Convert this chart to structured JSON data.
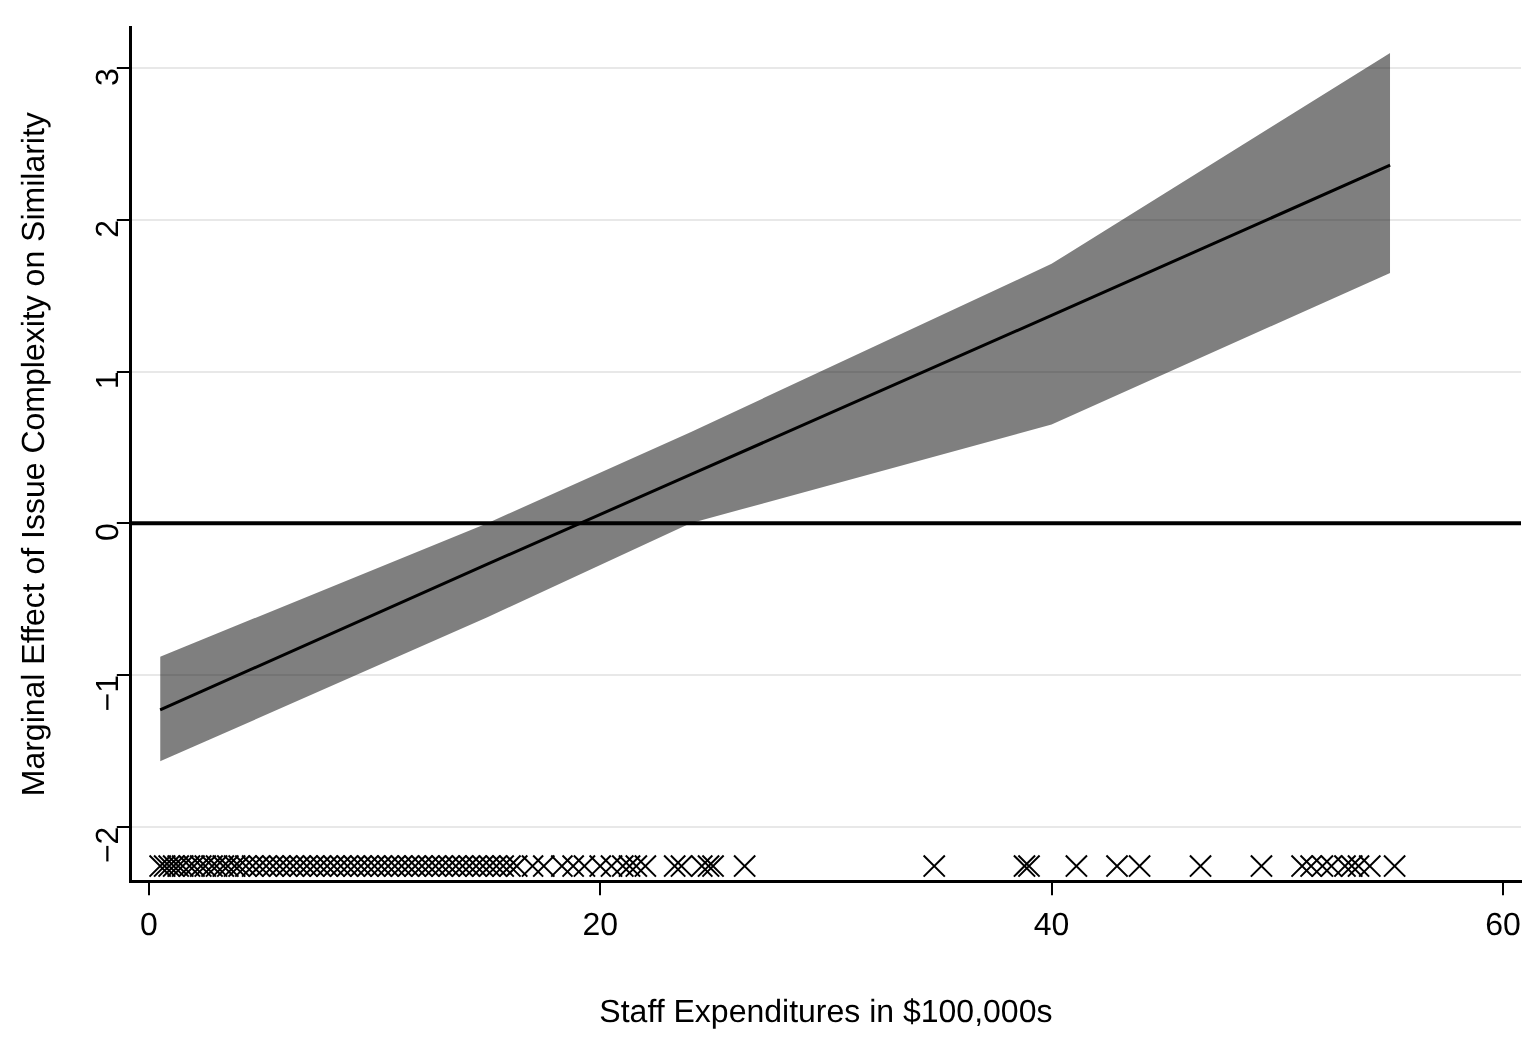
{
  "chart_data": {
    "type": "line",
    "xlabel": "Staff Expenditures in $100,000s",
    "ylabel": "Marginal Effect of Issue Complexity on Similarity",
    "xlim": [
      -0.8,
      60.8
    ],
    "xticks": [
      0,
      20,
      40,
      60
    ],
    "ylim": [
      -2.36,
      3.27
    ],
    "yticks": [
      -2,
      -1,
      0,
      1,
      2,
      3
    ],
    "grid": "y",
    "legend": false,
    "ref_lines": [
      {
        "axis": "y",
        "value": 0,
        "color": "#000000"
      }
    ],
    "series": [
      {
        "color": "#000000",
        "x": [
          0.5,
          15,
          24,
          40,
          55
        ],
        "values": [
          -1.23,
          -0.27,
          0.32,
          1.37,
          2.36
        ],
        "lower": [
          -1.57,
          -0.62,
          0,
          0.65,
          1.65
        ],
        "upper": [
          -0.88,
          0,
          0.6,
          1.71,
          3.1
        ]
      },
      {
        "type": "scatter",
        "color": "#000000",
        "marker": "cross",
        "x": [
          0.5,
          0.7,
          0.9,
          1.1,
          1.3,
          1.5,
          1.8,
          2.0,
          2.3,
          2.5,
          2.8,
          3.0,
          3.3,
          3.5,
          3.8,
          4.0,
          4.3,
          4.6,
          4.9,
          5.2,
          5.5,
          5.8,
          6.1,
          6.4,
          6.7,
          7.0,
          7.3,
          7.6,
          7.9,
          8.2,
          8.5,
          8.8,
          9.1,
          9.4,
          9.7,
          10.0,
          10.3,
          10.6,
          10.9,
          11.2,
          11.5,
          11.8,
          12.1,
          12.4,
          12.7,
          13.0,
          13.3,
          13.6,
          13.9,
          14.2,
          14.5,
          14.8,
          15.1,
          15.4,
          15.7,
          16.0,
          16.3,
          17.0,
          17.5,
          18.3,
          18.8,
          19.3,
          20.0,
          20.5,
          21.0,
          21.3,
          21.6,
          22.0,
          23.3,
          23.6,
          24.5,
          24.8,
          25.0,
          26.4,
          34.8,
          38.8,
          39.0,
          41.1,
          42.9,
          43.9,
          46.6,
          49.3,
          51.1,
          51.5,
          52.0,
          52.4,
          53.0,
          53.3,
          53.6,
          54.1,
          55.2
        ],
        "values": [
          -2.26,
          -2.26,
          -2.26,
          -2.26,
          -2.26,
          -2.26,
          -2.26,
          -2.26,
          -2.26,
          -2.26,
          -2.26,
          -2.26,
          -2.26,
          -2.26,
          -2.26,
          -2.26,
          -2.26,
          -2.26,
          -2.26,
          -2.26,
          -2.26,
          -2.26,
          -2.26,
          -2.26,
          -2.26,
          -2.26,
          -2.26,
          -2.26,
          -2.26,
          -2.26,
          -2.26,
          -2.26,
          -2.26,
          -2.26,
          -2.26,
          -2.26,
          -2.26,
          -2.26,
          -2.26,
          -2.26,
          -2.26,
          -2.26,
          -2.26,
          -2.26,
          -2.26,
          -2.26,
          -2.26,
          -2.26,
          -2.26,
          -2.26,
          -2.26,
          -2.26,
          -2.26,
          -2.26,
          -2.26,
          -2.26,
          -2.26,
          -2.26,
          -2.26,
          -2.26,
          -2.26,
          -2.26,
          -2.26,
          -2.26,
          -2.26,
          -2.26,
          -2.26,
          -2.26,
          -2.26,
          -2.26,
          -2.26,
          -2.26,
          -2.26,
          -2.26,
          -2.26,
          -2.26,
          -2.26,
          -2.26,
          -2.26,
          -2.26,
          -2.26,
          -2.26,
          -2.26,
          -2.26,
          -2.26,
          -2.26,
          -2.26,
          -2.26,
          -2.26,
          -2.26,
          -2.26
        ]
      }
    ]
  }
}
